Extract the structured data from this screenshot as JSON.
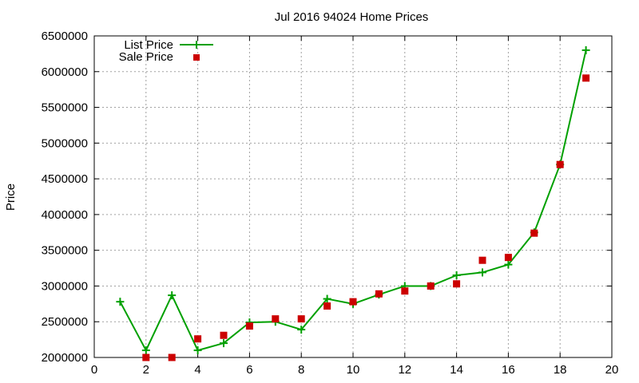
{
  "chart_data": {
    "type": "line",
    "title": "Jul 2016 94024 Home Prices",
    "xlabel": "",
    "ylabel": "Price",
    "xlim": [
      0,
      20
    ],
    "ylim": [
      2000000,
      6500000
    ],
    "x_ticks": [
      0,
      2,
      4,
      6,
      8,
      10,
      12,
      14,
      16,
      18,
      20
    ],
    "y_ticks": [
      2000000,
      2500000,
      3000000,
      3500000,
      4000000,
      4500000,
      5000000,
      5500000,
      6000000,
      6500000
    ],
    "grid": true,
    "legend_position": "top-left",
    "x": [
      1,
      2,
      3,
      4,
      5,
      6,
      7,
      8,
      9,
      10,
      11,
      12,
      13,
      14,
      15,
      16,
      17,
      18,
      19
    ],
    "series": [
      {
        "name": "List Price",
        "style": "linespoints",
        "marker": "plus",
        "color": "#00a000",
        "values": [
          2780000,
          2100000,
          2870000,
          2100000,
          2200000,
          2490000,
          2500000,
          2390000,
          2820000,
          2750000,
          2880000,
          3000000,
          3000000,
          3150000,
          3190000,
          3300000,
          3750000,
          4700000,
          6300000
        ]
      },
      {
        "name": "Sale Price",
        "style": "points",
        "marker": "square",
        "color": "#cc0000",
        "values": [
          null,
          2000000,
          2000000,
          2260000,
          2310000,
          2440000,
          2540000,
          2540000,
          2720000,
          2780000,
          2890000,
          2930000,
          3000000,
          3030000,
          3360000,
          3400000,
          3740000,
          4700000,
          5910000
        ]
      }
    ]
  },
  "legend": {
    "list_label": "List Price",
    "sale_label": "Sale Price"
  }
}
